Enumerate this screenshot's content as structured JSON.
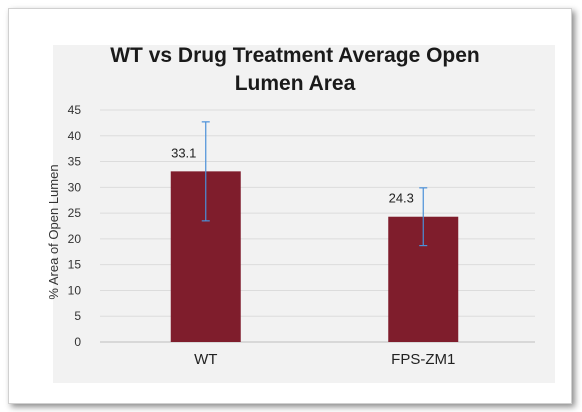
{
  "colors": {
    "bar": "#7f1d2c",
    "error_bar": "#4a90d9",
    "grid": "#dcdcdc",
    "plot_bg": "#f2f2f2"
  },
  "chart_data": {
    "type": "bar",
    "title_lines": [
      "WT vs Drug Treatment Average Open",
      "Lumen Area"
    ],
    "xlabel": "",
    "ylabel": "% Area of Open Lumen",
    "categories": [
      "WT",
      "FPS-ZM1"
    ],
    "values": [
      33.1,
      24.3
    ],
    "data_labels": [
      "33.1",
      "24.3"
    ],
    "error_bars": [
      {
        "low": 23.5,
        "high": 42.7
      },
      {
        "low": 18.7,
        "high": 29.9
      }
    ],
    "ylim": [
      0,
      45
    ],
    "yticks": [
      0,
      5,
      10,
      15,
      20,
      25,
      30,
      35,
      40,
      45
    ],
    "grid": true,
    "legend": "none"
  }
}
